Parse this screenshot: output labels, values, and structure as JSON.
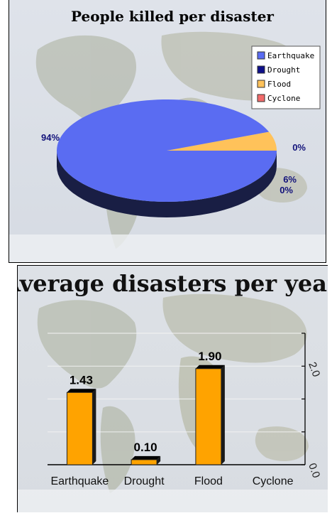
{
  "chart_data": [
    {
      "type": "pie",
      "title": "People killed per disaster",
      "categories": [
        "Earthquake",
        "Drought",
        "Flood",
        "Cyclone"
      ],
      "values": [
        94,
        0,
        6,
        0
      ],
      "labels": [
        "94%",
        "0%",
        "6%",
        "0%"
      ],
      "colors": [
        "#5a6cf2",
        "#0d0f8a",
        "#ffc25a",
        "#f26b6b"
      ],
      "legend_position": "top-right"
    },
    {
      "type": "bar",
      "title": "Average disasters per years",
      "categories": [
        "Earthquake",
        "Drought",
        "Flood",
        "Cyclone"
      ],
      "values": [
        1.43,
        0.1,
        1.9,
        0
      ],
      "value_labels": [
        "1.43",
        "0.10",
        "1.90",
        ""
      ],
      "ylim": [
        0,
        2.6
      ],
      "yticks": [
        "0.0",
        "2.0"
      ],
      "bar_color": "#ffa300",
      "grid": true
    }
  ]
}
